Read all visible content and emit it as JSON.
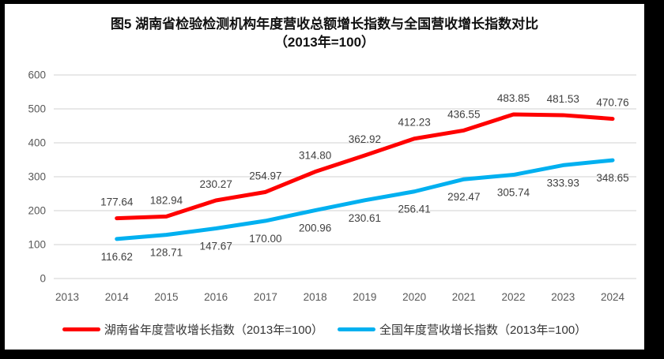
{
  "frame": {
    "border_color": "#000000",
    "background": "#ffffff"
  },
  "chart_data": {
    "type": "line",
    "title": "图5 湖南省检验检测机构年度营收总额增长指数与全国营收增长指数对比",
    "subtitle": "（2013年=100）",
    "categories": [
      "2013",
      "2014",
      "2015",
      "2016",
      "2017",
      "2018",
      "2019",
      "2020",
      "2021",
      "2022",
      "2023",
      "2024"
    ],
    "y_axis": {
      "min": 0,
      "max": 600,
      "step": 100,
      "tick_labels": [
        "0",
        "100",
        "200",
        "300",
        "400",
        "500",
        "600"
      ]
    },
    "grid": "horizontal",
    "legend_position": "bottom",
    "label_format": "0.00",
    "series": [
      {
        "name": "湖南省年度营收增长指数（2013年=100）",
        "color": "#ff0000",
        "x_start_index": 1,
        "label_position": "above",
        "values": [
          177.64,
          182.94,
          230.27,
          254.97,
          314.8,
          362.92,
          412.23,
          436.55,
          483.85,
          481.53,
          470.76
        ]
      },
      {
        "name": "全国年度营收增长指数（2013年=100）",
        "color": "#00b0f0",
        "x_start_index": 1,
        "label_position": "below",
        "values": [
          116.62,
          128.71,
          147.67,
          170.0,
          200.96,
          230.61,
          256.41,
          292.47,
          305.74,
          333.93,
          348.65
        ]
      }
    ],
    "style": {
      "grid_color": "#d9d9d9",
      "axis_text_color": "#595959",
      "data_label_color": "#404040",
      "line_width": 5
    }
  }
}
